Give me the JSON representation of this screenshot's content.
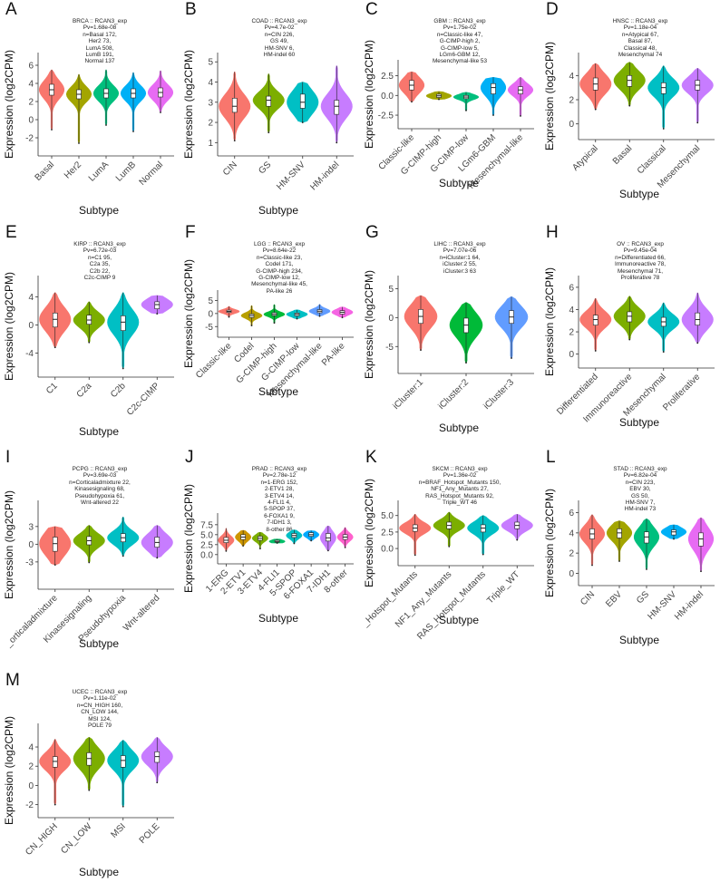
{
  "panels": [
    {
      "letter": "A",
      "title_lines": [
        "BRCA :: RCAN3_exp",
        "Pv=1.68e-08",
        "n=Basal 172,",
        "Her2 73,",
        "LumA 508,",
        "LumB 191,",
        "Normal 137"
      ],
      "chart_data": {
        "type": "violin",
        "xlabel": "Subtype",
        "ylabel": "Expression (log2CPM)",
        "ylim": [
          -3.2,
          6.6
        ],
        "yticks": [
          -2,
          0,
          2,
          4,
          6
        ],
        "categories": [
          "Basal",
          "Her2",
          "LumA",
          "LumB",
          "Normal"
        ],
        "series": [
          {
            "min": -1.1,
            "q1": 2.7,
            "median": 3.3,
            "q3": 3.9,
            "max": 5.5
          },
          {
            "min": -2.6,
            "q1": 2.3,
            "median": 2.8,
            "q3": 3.3,
            "max": 5.0
          },
          {
            "min": -0.6,
            "q1": 2.4,
            "median": 2.9,
            "q3": 3.4,
            "max": 5.5
          },
          {
            "min": -1.3,
            "q1": 2.4,
            "median": 2.9,
            "q3": 3.4,
            "max": 5.2
          },
          {
            "min": 0.8,
            "q1": 2.5,
            "median": 3.0,
            "q3": 3.5,
            "max": 5.4
          }
        ]
      }
    },
    {
      "letter": "B",
      "title_lines": [
        "COAD :: RCAN3_exp",
        "Pv=4.7e-02",
        "n=CIN 226,",
        "GS 49,",
        "HM-SNV 6,",
        "HM-indel 60"
      ],
      "chart_data": {
        "type": "violin",
        "xlabel": "Subtype",
        "ylabel": "Expression (log2CPM)",
        "ylim": [
          0.7,
          5.1
        ],
        "yticks": [
          1,
          2,
          3,
          4,
          5
        ],
        "categories": [
          "CIN",
          "GS",
          "HM-SNV",
          "HM-indel"
        ],
        "series": [
          {
            "min": 1.1,
            "q1": 2.5,
            "median": 2.8,
            "q3": 3.2,
            "max": 4.5
          },
          {
            "min": 1.5,
            "q1": 2.8,
            "median": 3.1,
            "q3": 3.3,
            "max": 4.4
          },
          {
            "min": 2.0,
            "q1": 2.7,
            "median": 3.0,
            "q3": 3.4,
            "max": 4.0
          },
          {
            "min": 1.0,
            "q1": 2.4,
            "median": 2.8,
            "q3": 3.1,
            "max": 4.8
          }
        ]
      }
    },
    {
      "letter": "C",
      "title_lines": [
        "GBM :: RCAN3_exp",
        "Pv=1.75e-02",
        "n=Classic-like 47,",
        "G-CIMP-high 2,",
        "G-CIMP-low 5,",
        "LGm6-GBM 12,",
        "Mesenchymal-like 53"
      ],
      "chart_data": {
        "type": "violin",
        "xlabel": "Subtype",
        "ylabel": "Expression (log2CPM)",
        "ylim": [
          -3.3,
          3.6
        ],
        "yticks": [
          -2.5,
          0.0,
          2.5
        ],
        "ytick_labels": [
          "-2.5",
          "0.0",
          "2.5"
        ],
        "categories": [
          "Classic-like",
          "G-CIMP-high",
          "G-CIMP-low",
          "LGm6-GBM",
          "Mesenchymal-like"
        ],
        "series": [
          {
            "min": -0.8,
            "q1": 0.7,
            "median": 1.3,
            "q3": 1.9,
            "max": 3.0
          },
          {
            "min": -0.5,
            "q1": -0.25,
            "median": -0.05,
            "q3": 0.15,
            "max": 0.5
          },
          {
            "min": -1.9,
            "q1": -0.4,
            "median": -0.2,
            "q3": 0.0,
            "max": 0.4
          },
          {
            "min": -2.5,
            "q1": 0.2,
            "median": 1.0,
            "q3": 1.5,
            "max": 2.3
          },
          {
            "min": -2.6,
            "q1": 0.2,
            "median": 0.7,
            "q3": 1.1,
            "max": 2.3
          }
        ]
      }
    },
    {
      "letter": "D",
      "title_lines": [
        "HNSC :: RCAN3_exp",
        "Pv=1.18e-04",
        "n=Atypical 67,",
        "Basal 87,",
        "Classical 48,",
        "Mesenchymal 74"
      ],
      "chart_data": {
        "type": "violin",
        "xlabel": "Subtype",
        "ylabel": "Expression (log2CPM)",
        "ylim": [
          -0.7,
          5.3
        ],
        "yticks": [
          0,
          2,
          4
        ],
        "categories": [
          "Atypical",
          "Basal",
          "Classical",
          "Mesenchymal"
        ],
        "series": [
          {
            "min": 1.2,
            "q1": 2.8,
            "median": 3.3,
            "q3": 3.8,
            "max": 5.0
          },
          {
            "min": 1.5,
            "q1": 3.1,
            "median": 3.6,
            "q3": 4.0,
            "max": 5.1
          },
          {
            "min": -0.4,
            "q1": 2.5,
            "median": 3.0,
            "q3": 3.4,
            "max": 4.8
          },
          {
            "min": 0.1,
            "q1": 2.8,
            "median": 3.2,
            "q3": 3.6,
            "max": 4.6
          }
        ]
      }
    },
    {
      "letter": "E",
      "title_lines": [
        "KIRP :: RCAN3_exp",
        "Pv=6.72e-03",
        "n=C1 95,",
        "C2a 35,",
        "C2b 22,",
        "C2c-CIMP 9"
      ],
      "chart_data": {
        "type": "violin",
        "xlabel": "Subtype",
        "ylabel": "Expression (log2CPM)",
        "ylim": [
          -6.4,
          6.0
        ],
        "yticks": [
          -4,
          0,
          4
        ],
        "categories": [
          "C1",
          "C2a",
          "C2b",
          "C2c-CIMP"
        ],
        "series": [
          {
            "min": -3.2,
            "q1": -0.3,
            "median": 0.8,
            "q3": 1.7,
            "max": 4.6
          },
          {
            "min": -2.5,
            "q1": 0.1,
            "median": 0.7,
            "q3": 1.4,
            "max": 3.3
          },
          {
            "min": -6.2,
            "q1": -0.8,
            "median": 0.4,
            "q3": 1.3,
            "max": 4.6
          },
          {
            "min": 1.6,
            "q1": 2.3,
            "median": 2.9,
            "q3": 3.3,
            "max": 4.2
          }
        ]
      }
    },
    {
      "letter": "F",
      "title_lines": [
        "LGG :: RCAN3_exp",
        "Pv=8.64e-22",
        "n=Classic-like 23,",
        "Codel 171,",
        "G-CIMP-high 234,",
        "G-CIMP-low 12,",
        "Mesenchymal-like 45,",
        "PA-like 26"
      ],
      "chart_data": {
        "type": "violin",
        "xlabel": "Subtype",
        "ylabel": "Expression (log2CPM)",
        "ylim": [
          -6.3,
          6.2
        ],
        "yticks": [
          -5,
          0,
          5
        ],
        "categories": [
          "Classic-like",
          "Codel",
          "G-CIMP-high",
          "G-CIMP-low",
          "Mesenchymal-like",
          "PA-like"
        ],
        "series": [
          {
            "min": -1.3,
            "q1": 0.4,
            "median": 0.8,
            "q3": 1.3,
            "max": 2.7
          },
          {
            "min": -4.6,
            "q1": -1.5,
            "median": -0.8,
            "q3": -0.2,
            "max": 3.0
          },
          {
            "min": -3.6,
            "q1": -0.8,
            "median": -0.3,
            "q3": 0.3,
            "max": 3.4
          },
          {
            "min": -2.0,
            "q1": -0.9,
            "median": -0.3,
            "q3": 0.2,
            "max": 1.4
          },
          {
            "min": -1.0,
            "q1": 0.3,
            "median": 0.9,
            "q3": 1.5,
            "max": 3.5
          },
          {
            "min": -1.5,
            "q1": -0.2,
            "median": 0.5,
            "q3": 1.1,
            "max": 2.5
          }
        ]
      }
    },
    {
      "letter": "G",
      "title_lines": [
        "LIHC :: RCAN3_exp",
        "Pv=7.07e-06",
        "n=iCluster:1 64,",
        "iCluster:2 55,",
        "iCluster:3 63"
      ],
      "chart_data": {
        "type": "violin",
        "xlabel": "Subtype",
        "ylabel": "Expression (log2CPM)",
        "ylim": [
          -8.4,
          6.0
        ],
        "yticks": [
          -5,
          0,
          5
        ],
        "categories": [
          "iCluster:1",
          "iCluster:2",
          "iCluster:3"
        ],
        "series": [
          {
            "min": -5.6,
            "q1": -1.0,
            "median": 0.2,
            "q3": 1.4,
            "max": 3.8
          },
          {
            "min": -7.8,
            "q1": -2.6,
            "median": -1.3,
            "q3": -0.1,
            "max": 2.6
          },
          {
            "min": -7.0,
            "q1": -1.0,
            "median": 0.1,
            "q3": 1.2,
            "max": 3.6
          }
        ]
      }
    },
    {
      "letter": "H",
      "title_lines": [
        "OV :: RCAN3_exp",
        "Pv=9.45e-04",
        "n=Differentiated 66,",
        "Immunoreactive 78,",
        "Mesenchymal 71,",
        "Proliferative 78"
      ],
      "chart_data": {
        "type": "violin",
        "xlabel": "Subtype",
        "ylabel": "Expression (log2CPM)",
        "ylim": [
          -0.6,
          6.4
        ],
        "yticks": [
          0,
          2,
          4,
          6
        ],
        "categories": [
          "Differentiated",
          "Immunoreactive",
          "Mesenchymal",
          "Proliferative"
        ],
        "series": [
          {
            "min": 0.3,
            "q1": 2.6,
            "median": 3.1,
            "q3": 3.5,
            "max": 5.0
          },
          {
            "min": 1.3,
            "q1": 2.9,
            "median": 3.4,
            "q3": 3.8,
            "max": 5.2
          },
          {
            "min": 0.2,
            "q1": 2.5,
            "median": 2.9,
            "q3": 3.3,
            "max": 4.6
          },
          {
            "min": 1.0,
            "q1": 2.6,
            "median": 3.1,
            "q3": 3.7,
            "max": 5.5
          }
        ]
      }
    },
    {
      "letter": "I",
      "title_lines": [
        "PCPG :: RCAN3_exp",
        "Pv=3.69e-03",
        "n=Corticaladmixture 22,",
        "Kinasesignaling 68,",
        "Pseudohypoxia 61,",
        "Wnt-altered 22"
      ],
      "chart_data": {
        "type": "violin",
        "xlabel": "Subtype",
        "ylabel": "Expression (log2CPM)",
        "ylim": [
          -6.4,
          6.2
        ],
        "yticks": [
          -3,
          0,
          3
        ],
        "categories": [
          "Corticaladmixture",
          "Kinasesignaling",
          "Pseudohypoxia",
          "Wnt-altered"
        ],
        "x_tick_display": [
          "_orticaladmixture",
          "Kinasesignaling",
          "Pseudohypoxia",
          "Wnt-altered"
        ],
        "series": [
          {
            "min": -3.5,
            "q1": -1.2,
            "median": 0.1,
            "q3": 1.2,
            "max": 3.0
          },
          {
            "min": -3.1,
            "q1": -0.1,
            "median": 0.6,
            "q3": 1.3,
            "max": 3.2
          },
          {
            "min": -2.0,
            "q1": 0.4,
            "median": 1.1,
            "q3": 1.8,
            "max": 4.6
          },
          {
            "min": -2.3,
            "q1": -0.5,
            "median": 0.3,
            "q3": 1.2,
            "max": 3.2
          }
        ]
      }
    },
    {
      "letter": "J",
      "title_lines": [
        "PRAD :: RCAN3_exp",
        "Pv=2.78e-12",
        "n=1-ERG 152,",
        "2-ETV1 28,",
        "3-ETV4 14,",
        "4-FLI1 4,",
        "5-SPOP 37,",
        "6-FOXA1 9,",
        "7-IDH1 3,",
        "8-other 86"
      ],
      "chart_data": {
        "type": "violin",
        "xlabel": "Subtype",
        "ylabel": "Expression (log2CPM)",
        "ylim": [
          -0.5,
          8.6
        ],
        "yticks": [
          0.0,
          2.5,
          5.0,
          7.5
        ],
        "ytick_labels": [
          "0.0",
          "2.5",
          "5.0",
          "7.5"
        ],
        "categories": [
          "1-ERG",
          "2-ETV1",
          "3-ETV4",
          "4-FLI1",
          "5-SPOP",
          "6-FOXA1",
          "7-IDH1",
          "8-other"
        ],
        "series": [
          {
            "min": 0.9,
            "q1": 3.0,
            "median": 3.6,
            "q3": 4.3,
            "max": 6.6
          },
          {
            "min": 2.2,
            "q1": 3.8,
            "median": 4.4,
            "q3": 5.0,
            "max": 6.1
          },
          {
            "min": 1.5,
            "q1": 3.6,
            "median": 4.1,
            "q3": 4.6,
            "max": 5.6
          },
          {
            "min": 2.9,
            "q1": 3.1,
            "median": 3.3,
            "q3": 3.6,
            "max": 3.9
          },
          {
            "min": 2.8,
            "q1": 4.3,
            "median": 4.8,
            "q3": 5.3,
            "max": 6.2
          },
          {
            "min": 3.5,
            "q1": 4.6,
            "median": 5.0,
            "q3": 5.5,
            "max": 6.0
          },
          {
            "min": 1.0,
            "q1": 3.4,
            "median": 4.2,
            "q3": 5.3,
            "max": 7.2
          },
          {
            "min": 1.8,
            "q1": 3.8,
            "median": 4.4,
            "q3": 5.0,
            "max": 6.8
          }
        ]
      }
    },
    {
      "letter": "K",
      "title_lines": [
        "SKCM :: RCAN3_exp",
        "Pv=1.36e-02",
        "n=BRAF_Hotspot_Mutants 150,",
        "NF1_Any_Mutants 27,",
        "RAS_Hotspot_Mutants 92,",
        "Triple_WT 46"
      ],
      "chart_data": {
        "type": "violin",
        "xlabel": "Subtype",
        "ylabel": "Expression (log2CPM)",
        "ylim": [
          -1.5,
          6.2
        ],
        "yticks": [
          0.0,
          2.5,
          5.0
        ],
        "ytick_labels": [
          "0.0",
          "2.5",
          "5.0"
        ],
        "categories": [
          "BRAF_Hotspot_Mutants",
          "NF1_Any_Mutants",
          "RAS_Hotspot_Mutants",
          "Triple_WT"
        ],
        "x_tick_display": [
          "_Hotspot_Mutants",
          "NF1_Any_Mutants",
          "RAS_Hotspot_Mutants",
          "Triple_WT"
        ],
        "series": [
          {
            "min": -1.0,
            "q1": 2.6,
            "median": 3.1,
            "q3": 3.6,
            "max": 5.2
          },
          {
            "min": 0.3,
            "q1": 3.0,
            "median": 3.5,
            "q3": 4.0,
            "max": 5.5
          },
          {
            "min": -0.9,
            "q1": 2.5,
            "median": 3.1,
            "q3": 3.6,
            "max": 5.0
          },
          {
            "min": 1.3,
            "q1": 3.0,
            "median": 3.5,
            "q3": 4.0,
            "max": 5.2
          }
        ]
      }
    },
    {
      "letter": "L",
      "title_lines": [
        "STAD :: RCAN3_exp",
        "Pv=6.82e-04",
        "n=CIN 223,",
        "EBV 30,",
        "GS 50,",
        "HM-SNV 7,",
        "HM-indel 73"
      ],
      "chart_data": {
        "type": "violin",
        "xlabel": "Subtype",
        "ylabel": "Expression (log2CPM)",
        "ylim": [
          -0.5,
          6.5
        ],
        "yticks": [
          0,
          2,
          4,
          6
        ],
        "categories": [
          "CIN",
          "EBV",
          "GS",
          "HM-SNV",
          "HM-indel"
        ],
        "series": [
          {
            "min": 0.8,
            "q1": 3.4,
            "median": 3.9,
            "q3": 4.4,
            "max": 5.8
          },
          {
            "min": 1.2,
            "q1": 3.5,
            "median": 4.0,
            "q3": 4.4,
            "max": 5.2
          },
          {
            "min": 0.4,
            "q1": 3.0,
            "median": 3.6,
            "q3": 4.1,
            "max": 5.4
          },
          {
            "min": 3.4,
            "q1": 3.8,
            "median": 4.1,
            "q3": 4.3,
            "max": 4.8
          },
          {
            "min": 0.2,
            "q1": 2.7,
            "median": 3.4,
            "q3": 4.0,
            "max": 5.5
          }
        ]
      }
    },
    {
      "letter": "M",
      "title_lines": [
        "UCEC :: RCAN3_exp",
        "Pv=1.11e-02",
        "n=CN_HIGH 160,",
        "CN_LOW 144,",
        "MSI 124,",
        "POLE 79"
      ],
      "chart_data": {
        "type": "violin",
        "xlabel": "Subtype",
        "ylabel": "Expression (log2CPM)",
        "ylim": [
          -2.6,
          5.7
        ],
        "yticks": [
          -2,
          0,
          2,
          4
        ],
        "categories": [
          "CN_HIGH",
          "CN_LOW",
          "MSI",
          "POLE"
        ],
        "series": [
          {
            "min": -2.0,
            "q1": 1.9,
            "median": 2.5,
            "q3": 3.0,
            "max": 4.8
          },
          {
            "min": -0.5,
            "q1": 2.1,
            "median": 2.8,
            "q3": 3.4,
            "max": 5.0
          },
          {
            "min": -2.2,
            "q1": 1.9,
            "median": 2.6,
            "q3": 3.1,
            "max": 4.7
          },
          {
            "min": 0.3,
            "q1": 2.4,
            "median": 3.0,
            "q3": 3.5,
            "max": 5.0
          }
        ]
      }
    }
  ],
  "colors": {
    "n2": [
      "#F8766D",
      "#00BFC4"
    ],
    "n3": [
      "#F8766D",
      "#00BA38",
      "#619CFF"
    ],
    "n4": [
      "#F8766D",
      "#7CAE00",
      "#00BFC4",
      "#C77CFF"
    ],
    "n5": [
      "#F8766D",
      "#A3A500",
      "#00BF7D",
      "#00B0F6",
      "#E76BF3"
    ],
    "n6": [
      "#F8766D",
      "#B79F00",
      "#00BA38",
      "#00BFC4",
      "#619CFF",
      "#F564E3"
    ],
    "n8": [
      "#F8766D",
      "#CD9600",
      "#7CAE00",
      "#00BE67",
      "#00BFC4",
      "#00A9FF",
      "#C77CFF",
      "#FF61CC"
    ],
    "box": "#ffffff",
    "axis": "#333333"
  }
}
